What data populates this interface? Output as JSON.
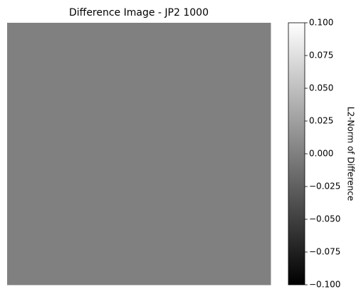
{
  "chart_data": {
    "type": "heatmap",
    "title": "Difference Image - JP2 1000",
    "values": [
      [
        0
      ]
    ],
    "colormap": "gray",
    "clim": [
      -0.1,
      0.1
    ],
    "colorbar_label": "L2-Norm of Difference",
    "colorbar_ticks": [
      {
        "value": -0.1,
        "label": "−0.100"
      },
      {
        "value": -0.075,
        "label": "−0.075"
      },
      {
        "value": -0.05,
        "label": "−0.050"
      },
      {
        "value": -0.025,
        "label": "−0.025"
      },
      {
        "value": 0,
        "label": "0.000"
      },
      {
        "value": 0.025,
        "label": "0.025"
      },
      {
        "value": 0.05,
        "label": "0.050"
      },
      {
        "value": 0.075,
        "label": "0.075"
      },
      {
        "value": 0.1,
        "label": "0.100"
      }
    ]
  }
}
